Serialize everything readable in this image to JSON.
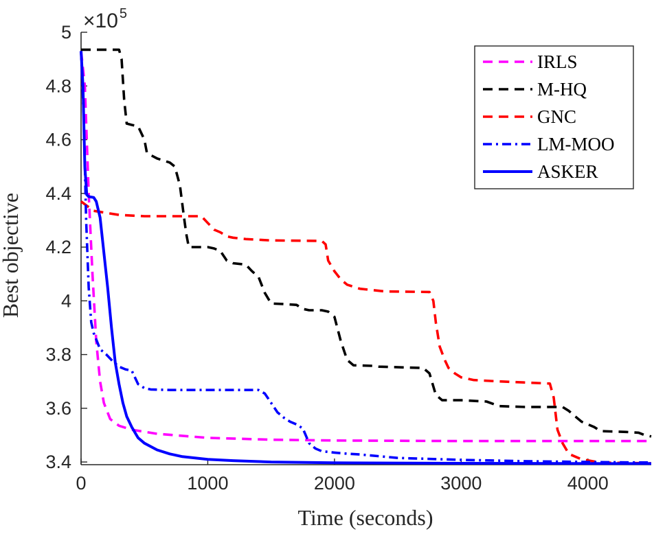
{
  "chart_data": {
    "type": "line",
    "title": "",
    "xlabel": "Time (seconds)",
    "ylabel": "Best objective",
    "xlim": [
      0,
      4500
    ],
    "ylim": [
      339000,
      500000
    ],
    "x_ticks": [
      0,
      1000,
      2000,
      3000,
      4000
    ],
    "x_tick_labels": [
      "0",
      "1000",
      "2000",
      "3000",
      "4000"
    ],
    "y_ticks": [
      340000,
      360000,
      380000,
      400000,
      420000,
      440000,
      460000,
      480000,
      500000
    ],
    "y_tick_labels": [
      "3.4",
      "3.6",
      "3.8",
      "4",
      "4.2",
      "4.4",
      "4.6",
      "4.8",
      "5"
    ],
    "y_exponent_base": "×10",
    "y_exponent_power": "5",
    "grid": false,
    "legend_position": "top-right",
    "series": [
      {
        "name": "IRLS",
        "color": "#ff00ff",
        "style": "dashed",
        "points": [
          [
            0,
            493000
          ],
          [
            30,
            480000
          ],
          [
            60,
            440000
          ],
          [
            90,
            410000
          ],
          [
            120,
            385000
          ],
          [
            150,
            370000
          ],
          [
            180,
            362000
          ],
          [
            230,
            356000
          ],
          [
            300,
            353500
          ],
          [
            400,
            352000
          ],
          [
            600,
            350500
          ],
          [
            1000,
            349000
          ],
          [
            1500,
            348300
          ],
          [
            2000,
            348000
          ],
          [
            3000,
            347800
          ],
          [
            4500,
            347800
          ]
        ]
      },
      {
        "name": "M-HQ",
        "color": "#000000",
        "style": "dashed",
        "points": [
          [
            0,
            493500
          ],
          [
            300,
            493500
          ],
          [
            320,
            490000
          ],
          [
            340,
            475000
          ],
          [
            360,
            466000
          ],
          [
            400,
            465500
          ],
          [
            450,
            465000
          ],
          [
            500,
            460000
          ],
          [
            520,
            455000
          ],
          [
            600,
            453000
          ],
          [
            700,
            451500
          ],
          [
            740,
            450000
          ],
          [
            780,
            443000
          ],
          [
            810,
            432000
          ],
          [
            830,
            425000
          ],
          [
            850,
            420000
          ],
          [
            1000,
            420000
          ],
          [
            1050,
            419500
          ],
          [
            1100,
            418500
          ],
          [
            1150,
            415000
          ],
          [
            1200,
            414000
          ],
          [
            1300,
            413500
          ],
          [
            1350,
            411000
          ],
          [
            1400,
            409000
          ],
          [
            1450,
            403000
          ],
          [
            1500,
            399000
          ],
          [
            1600,
            398800
          ],
          [
            1700,
            398500
          ],
          [
            1750,
            397000
          ],
          [
            1800,
            396500
          ],
          [
            1900,
            396500
          ],
          [
            1950,
            396000
          ],
          [
            2000,
            394000
          ],
          [
            2050,
            385000
          ],
          [
            2100,
            378000
          ],
          [
            2150,
            376000
          ],
          [
            2300,
            375800
          ],
          [
            2350,
            375500
          ],
          [
            2700,
            375000
          ],
          [
            2750,
            373000
          ],
          [
            2800,
            365000
          ],
          [
            2850,
            363000
          ],
          [
            3000,
            363000
          ],
          [
            3200,
            362500
          ],
          [
            3300,
            360800
          ],
          [
            3500,
            360500
          ],
          [
            3800,
            360500
          ],
          [
            3850,
            359000
          ],
          [
            3900,
            357000
          ],
          [
            3950,
            355000
          ],
          [
            4000,
            354000
          ],
          [
            4050,
            353000
          ],
          [
            4100,
            351500
          ],
          [
            4300,
            351200
          ],
          [
            4400,
            350900
          ],
          [
            4450,
            350000
          ],
          [
            4500,
            349500
          ]
        ]
      },
      {
        "name": "GNC",
        "color": "#ff0000",
        "style": "dashed",
        "points": [
          [
            0,
            437000
          ],
          [
            100,
            433500
          ],
          [
            300,
            432000
          ],
          [
            500,
            431500
          ],
          [
            800,
            431500
          ],
          [
            950,
            431500
          ],
          [
            1000,
            429000
          ],
          [
            1050,
            426500
          ],
          [
            1100,
            425500
          ],
          [
            1150,
            424000
          ],
          [
            1200,
            423500
          ],
          [
            1300,
            423000
          ],
          [
            1500,
            422500
          ],
          [
            1900,
            422300
          ],
          [
            1930,
            421000
          ],
          [
            1950,
            415000
          ],
          [
            2000,
            411000
          ],
          [
            2050,
            408000
          ],
          [
            2100,
            406000
          ],
          [
            2200,
            404500
          ],
          [
            2400,
            403500
          ],
          [
            2750,
            403300
          ],
          [
            2780,
            400000
          ],
          [
            2800,
            392000
          ],
          [
            2830,
            383000
          ],
          [
            2870,
            378000
          ],
          [
            2900,
            375000
          ],
          [
            2950,
            373000
          ],
          [
            3000,
            371500
          ],
          [
            3100,
            370500
          ],
          [
            3300,
            370000
          ],
          [
            3700,
            369200
          ],
          [
            3730,
            364000
          ],
          [
            3760,
            352000
          ],
          [
            3800,
            347000
          ],
          [
            3850,
            343000
          ],
          [
            3950,
            341000
          ],
          [
            4100,
            339800
          ],
          [
            4500,
            339500
          ]
        ]
      },
      {
        "name": "LM-MOO",
        "color": "#0000ff",
        "style": "dash-dot",
        "points": [
          [
            0,
            493000
          ],
          [
            20,
            470000
          ],
          [
            40,
            430000
          ],
          [
            60,
            405000
          ],
          [
            80,
            392000
          ],
          [
            100,
            388000
          ],
          [
            150,
            382000
          ],
          [
            200,
            380000
          ],
          [
            250,
            377500
          ],
          [
            300,
            375500
          ],
          [
            350,
            374500
          ],
          [
            400,
            374000
          ],
          [
            450,
            369000
          ],
          [
            500,
            367500
          ],
          [
            550,
            367000
          ],
          [
            700,
            366800
          ],
          [
            1000,
            366800
          ],
          [
            1400,
            366800
          ],
          [
            1450,
            365500
          ],
          [
            1500,
            362000
          ],
          [
            1550,
            358500
          ],
          [
            1600,
            356500
          ],
          [
            1650,
            355000
          ],
          [
            1700,
            354000
          ],
          [
            1750,
            352500
          ],
          [
            1800,
            347000
          ],
          [
            1850,
            345000
          ],
          [
            1900,
            344000
          ],
          [
            2000,
            343500
          ],
          [
            2100,
            343100
          ],
          [
            2200,
            342800
          ],
          [
            2500,
            341500
          ],
          [
            3000,
            340800
          ],
          [
            3500,
            340300
          ],
          [
            4000,
            340000
          ],
          [
            4500,
            339800
          ]
        ]
      },
      {
        "name": "ASKER",
        "color": "#0000ff",
        "style": "solid",
        "points": [
          [
            0,
            493000
          ],
          [
            15,
            480000
          ],
          [
            30,
            450000
          ],
          [
            45,
            439500
          ],
          [
            60,
            438800
          ],
          [
            100,
            438500
          ],
          [
            120,
            437000
          ],
          [
            150,
            431000
          ],
          [
            180,
            418000
          ],
          [
            210,
            405000
          ],
          [
            240,
            390000
          ],
          [
            270,
            377000
          ],
          [
            300,
            369000
          ],
          [
            330,
            362000
          ],
          [
            360,
            357000
          ],
          [
            400,
            353000
          ],
          [
            450,
            349000
          ],
          [
            500,
            347000
          ],
          [
            600,
            344500
          ],
          [
            700,
            343000
          ],
          [
            800,
            342000
          ],
          [
            1000,
            341000
          ],
          [
            1200,
            340500
          ],
          [
            1500,
            340000
          ],
          [
            2000,
            339700
          ],
          [
            3000,
            339500
          ],
          [
            4500,
            339400
          ]
        ]
      }
    ]
  }
}
